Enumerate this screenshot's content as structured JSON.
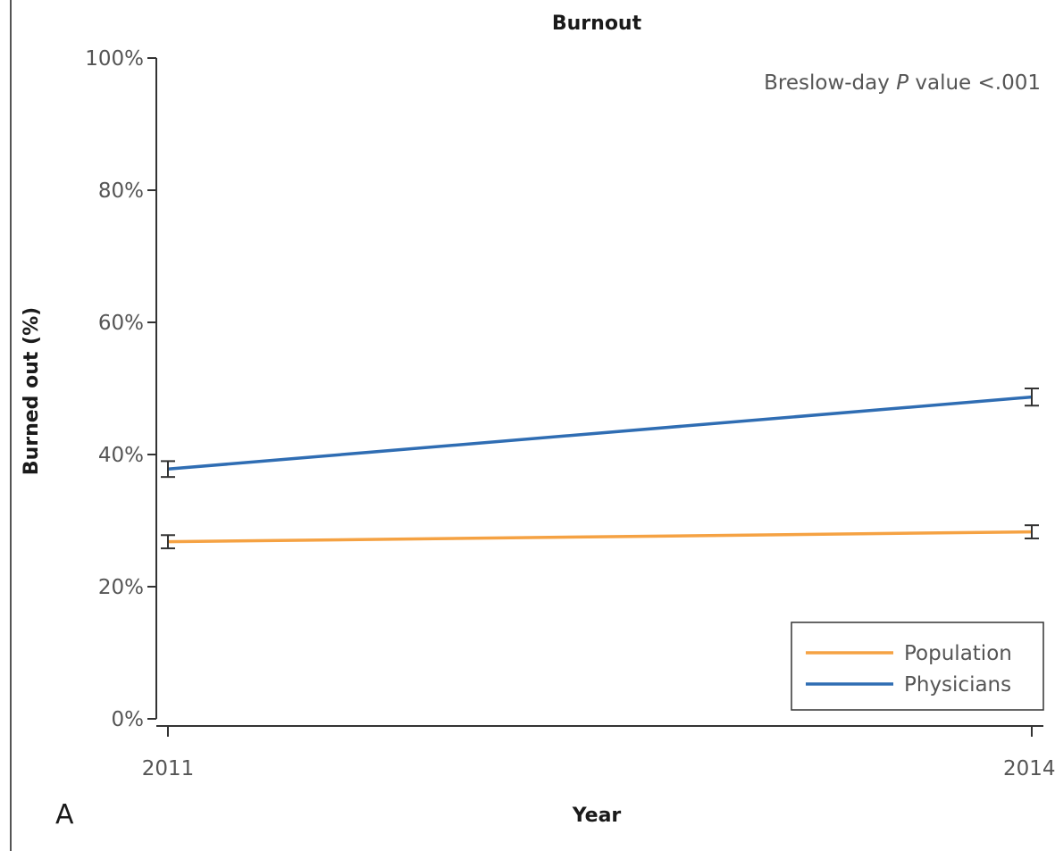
{
  "chart_data": {
    "type": "line",
    "title": "Burnout",
    "xlabel": "Year",
    "ylabel": "Burned out (%)",
    "x": [
      "2011",
      "2014"
    ],
    "ylim": [
      0,
      100
    ],
    "yticks": [
      "0%",
      "20%",
      "40%",
      "60%",
      "80%",
      "100%"
    ],
    "ytick_values": [
      0,
      20,
      40,
      60,
      80,
      100
    ],
    "series": [
      {
        "name": "Population",
        "color": "#f5a243",
        "values": [
          26.8,
          28.3
        ],
        "err": [
          1.0,
          1.0
        ]
      },
      {
        "name": "Physicians",
        "color": "#2f6db3",
        "values": [
          37.8,
          48.7
        ],
        "err": [
          1.2,
          1.3
        ]
      }
    ],
    "annotation": {
      "prefix": "Breslow-day ",
      "italic": "P",
      "suffix": " value <.001"
    },
    "panel_label": "A",
    "legend_position": "bottom-right",
    "grid": false
  }
}
